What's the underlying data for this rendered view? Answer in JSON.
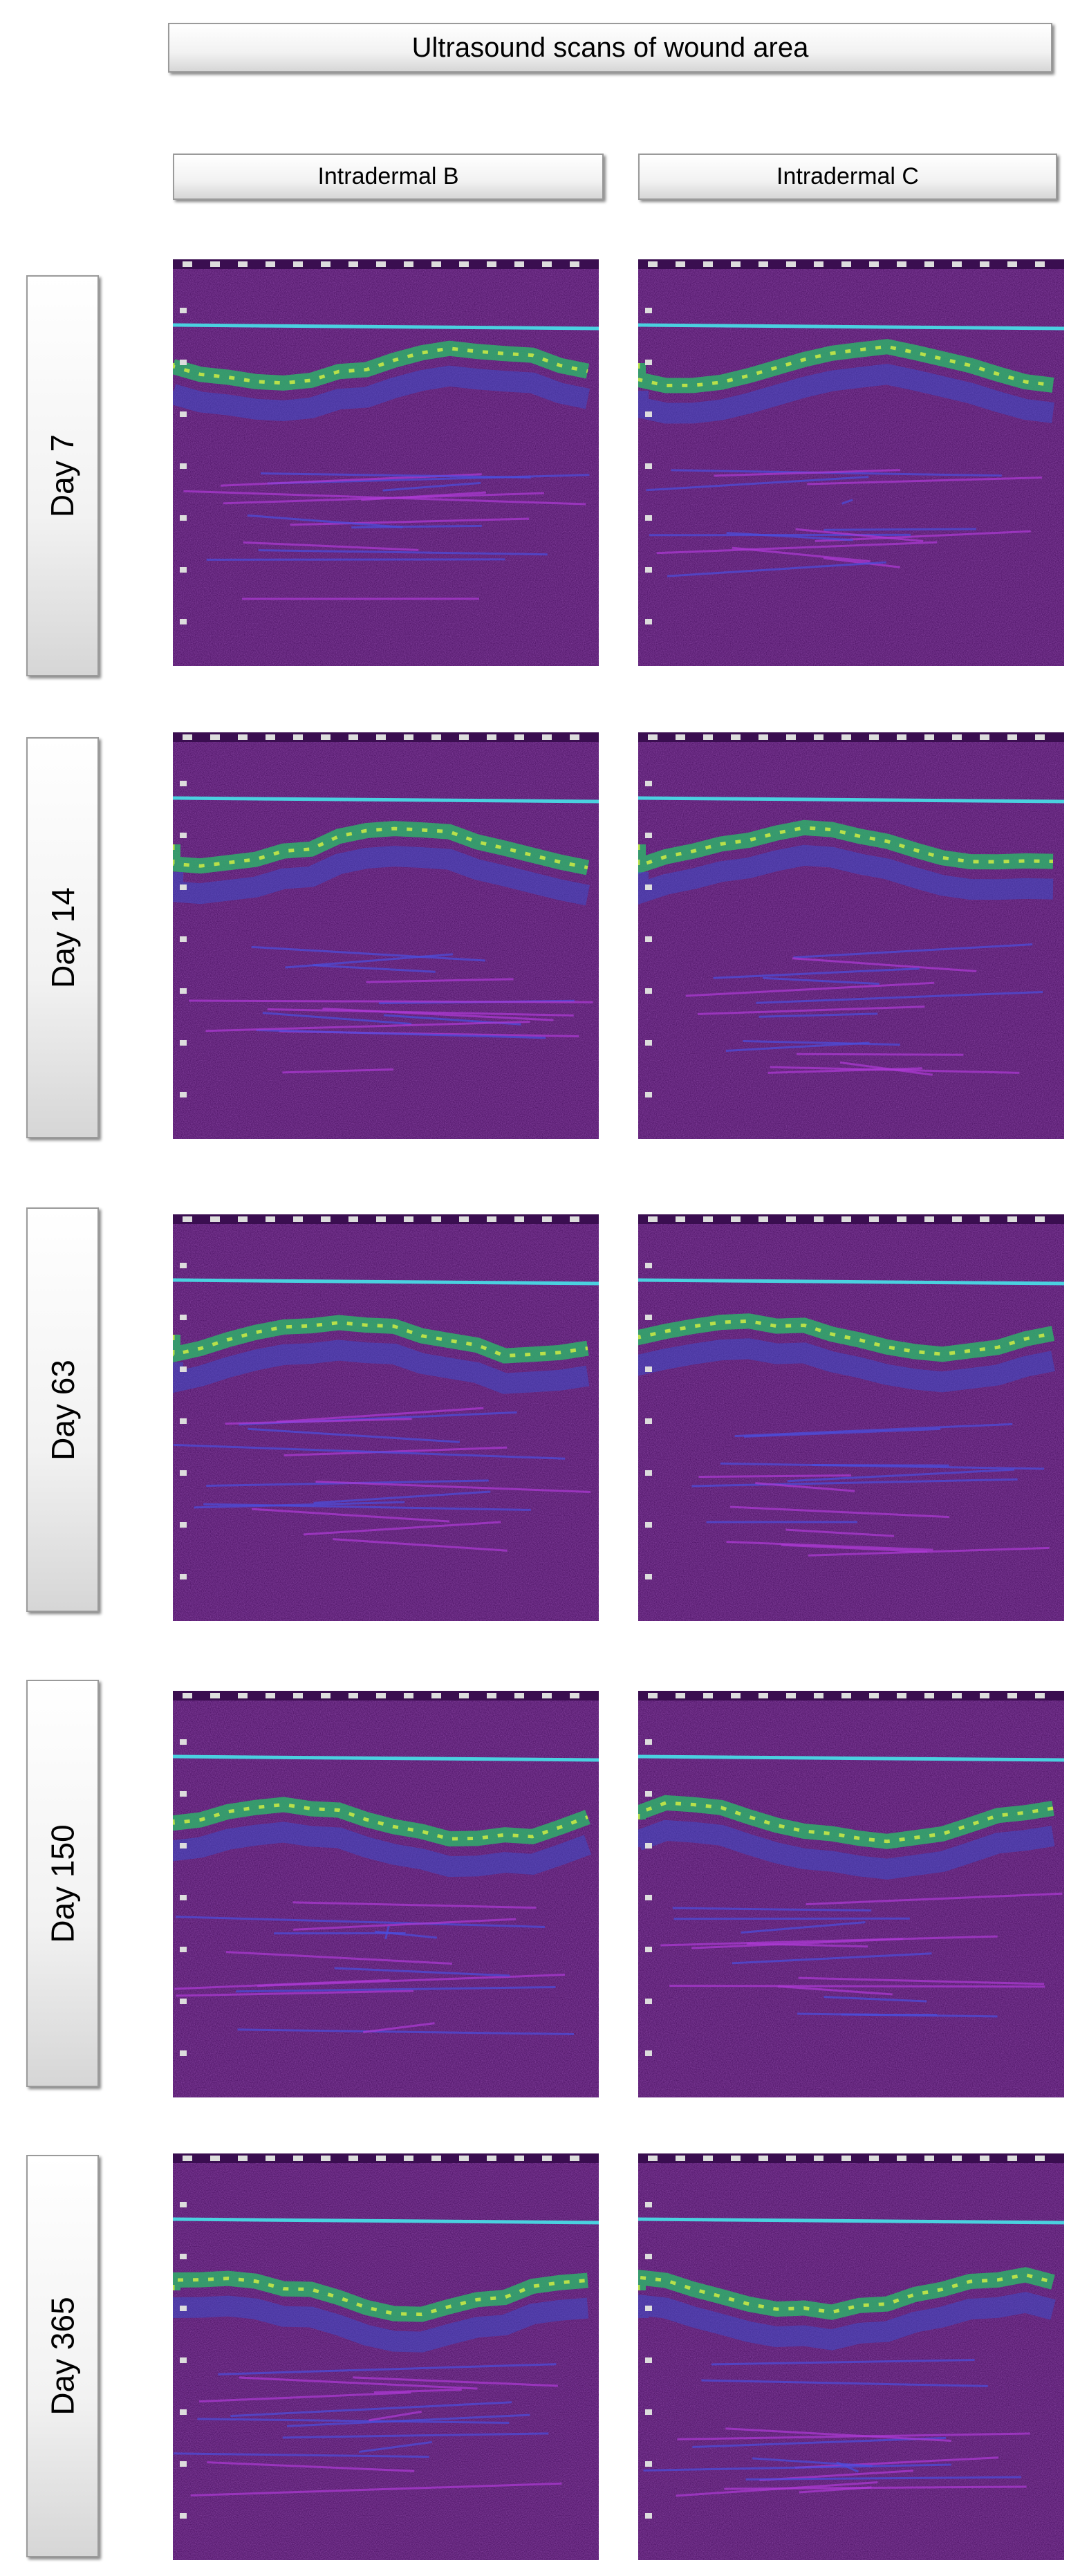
{
  "header": {
    "title": "Ultrasound scans of wound area"
  },
  "columns": [
    "Intradermal  B",
    "Intradermal  C"
  ],
  "rows": [
    {
      "label": "Day 7"
    },
    {
      "label": "Day 14"
    },
    {
      "label": "Day 63"
    },
    {
      "label": "Day 150"
    },
    {
      "label": "Day 365"
    }
  ]
}
